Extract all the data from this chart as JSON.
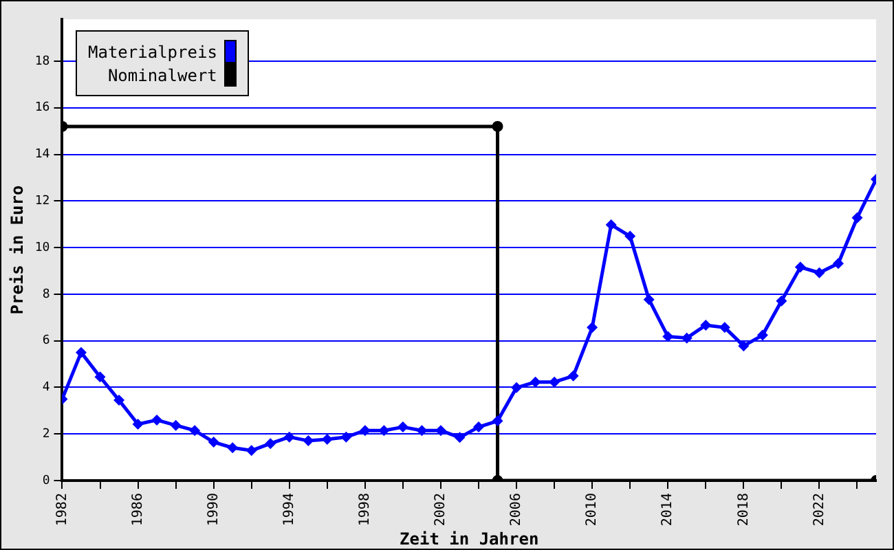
{
  "chart_data": {
    "type": "line",
    "xlabel": "Zeit in Jahren",
    "ylabel": "Preis in Euro",
    "x": [
      1982,
      1983,
      1984,
      1985,
      1986,
      1987,
      1988,
      1989,
      1990,
      1991,
      1992,
      1993,
      1994,
      1995,
      1996,
      1997,
      1998,
      1999,
      2000,
      2001,
      2002,
      2003,
      2004,
      2005,
      2006,
      2007,
      2008,
      2009,
      2010,
      2011,
      2012,
      2013,
      2014,
      2015,
      2016,
      2017,
      2018,
      2019,
      2020,
      2021,
      2022,
      2023,
      2024,
      2025
    ],
    "series": [
      {
        "name": "Materialpreis",
        "color": "#0000ff",
        "marker": "diamond",
        "values": [
          3.5,
          5.5,
          4.45,
          3.45,
          2.42,
          2.6,
          2.37,
          2.15,
          1.65,
          1.41,
          1.29,
          1.59,
          1.87,
          1.71,
          1.77,
          1.87,
          2.15,
          2.15,
          2.3,
          2.15,
          2.15,
          1.85,
          2.3,
          2.56,
          3.99,
          4.23,
          4.23,
          4.49,
          6.57,
          10.98,
          10.49,
          7.77,
          6.18,
          6.12,
          6.67,
          6.57,
          5.78,
          6.24,
          7.71,
          9.16,
          8.92,
          9.32,
          11.28,
          12.93
        ]
      },
      {
        "name": "Nominalwert",
        "color": "#000000",
        "marker": "circle",
        "x": [
          1982,
          2005,
          2005,
          2025
        ],
        "values": [
          15.2,
          15.2,
          0,
          0
        ]
      }
    ],
    "xlim": [
      1982,
      2025
    ],
    "xticks": [
      1982,
      {
        "value": 1984,
        "label": null
      },
      1986,
      {
        "value": 1988,
        "label": null
      },
      1990,
      {
        "value": 1992,
        "label": null
      },
      1994,
      {
        "value": 1996,
        "label": null
      },
      1998,
      {
        "value": 2000,
        "label": null
      },
      2002,
      {
        "value": 2004,
        "label": null
      },
      2006,
      {
        "value": 2008,
        "label": null
      },
      2010,
      {
        "value": 2012,
        "label": null
      },
      2014,
      {
        "value": 2016,
        "label": null
      },
      2018,
      {
        "value": 2020,
        "label": null
      },
      2022,
      {
        "value": 2024,
        "label": null
      }
    ],
    "ylim": [
      0,
      19.8
    ],
    "yticks": [
      0,
      2,
      4,
      6,
      8,
      10,
      12,
      14,
      16,
      18
    ],
    "grid": "y",
    "legend": "top left",
    "line_style": "solid"
  }
}
